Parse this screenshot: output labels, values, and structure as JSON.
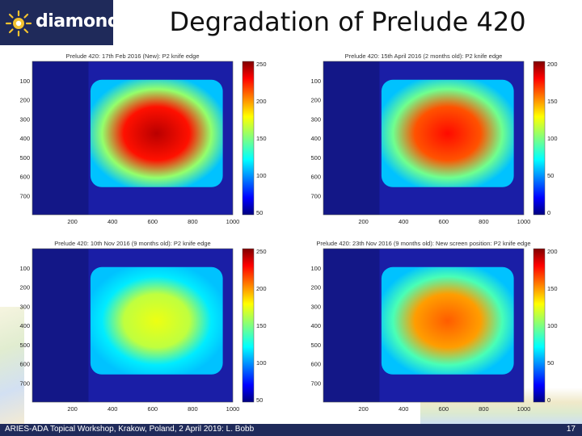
{
  "header": {
    "logo_text": "diamond",
    "title": "Degradation of Prelude 420"
  },
  "footer": {
    "text": "ARIES-ADA Topical Workshop, Krakow, Poland, 2 April 2019: L. Bobb",
    "page": "17"
  },
  "colors": {
    "banner": "#1f2a5a",
    "background_blue": "#1a1ea6"
  },
  "panels": [
    {
      "title": "Prelude 420: 17th Feb 2016 (New): P2 knife edge",
      "yticks": [
        "100",
        "200",
        "300",
        "400",
        "500",
        "600",
        "700"
      ],
      "xticks": [
        "200",
        "400",
        "600",
        "800",
        "1000"
      ],
      "cbar_ticks": [
        "250",
        "200",
        "150",
        "100",
        "50"
      ],
      "colorbar_max": 250,
      "peak_level": 0.95
    },
    {
      "title": "Prelude 420: 15th April 2016 (2 months old): P2 knife edge",
      "yticks": [
        "100",
        "200",
        "300",
        "400",
        "500",
        "600",
        "700"
      ],
      "xticks": [
        "200",
        "400",
        "600",
        "800",
        "1000"
      ],
      "cbar_ticks": [
        "200",
        "150",
        "100",
        "50",
        "0"
      ],
      "colorbar_max": 220,
      "peak_level": 0.88
    },
    {
      "title": "Prelude 420: 10th Nov 2016 (9 months old): P2 knife edge",
      "yticks": [
        "100",
        "200",
        "300",
        "400",
        "500",
        "600",
        "700"
      ],
      "xticks": [
        "200",
        "400",
        "600",
        "800",
        "1000"
      ],
      "cbar_ticks": [
        "250",
        "200",
        "150",
        "100",
        "50"
      ],
      "colorbar_max": 250,
      "peak_level": 0.62
    },
    {
      "title": "Prelude 420: 23th Nov 2016 (9 months old): New screen position: P2 knife edge",
      "yticks": [
        "100",
        "200",
        "300",
        "400",
        "500",
        "600",
        "700"
      ],
      "xticks": [
        "200",
        "400",
        "600",
        "800",
        "1000"
      ],
      "cbar_ticks": [
        "200",
        "150",
        "100",
        "50",
        "0"
      ],
      "colorbar_max": 220,
      "peak_level": 0.8
    }
  ]
}
